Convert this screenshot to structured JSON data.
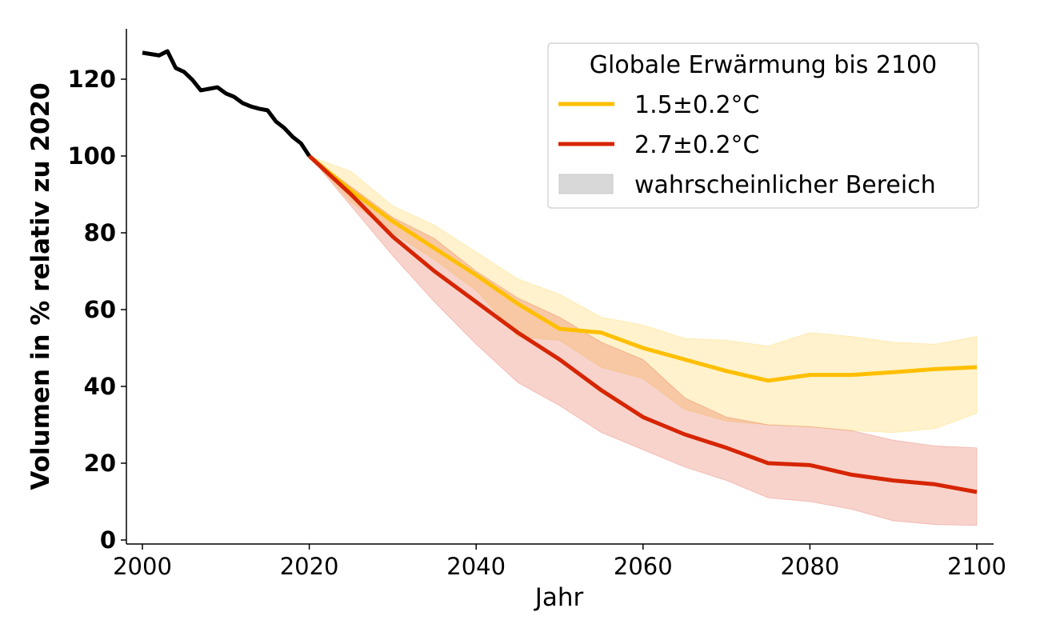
{
  "chart_data": {
    "type": "line",
    "title": "",
    "xlabel": "Jahr",
    "ylabel": "Volumen in % relativ zu 2020",
    "xlim": [
      1999,
      2102
    ],
    "ylim": [
      -1,
      133
    ],
    "xticks": [
      2000,
      2020,
      2040,
      2060,
      2080,
      2100
    ],
    "yticks": [
      0,
      20,
      40,
      60,
      80,
      100,
      120
    ],
    "grid": false,
    "legend": {
      "title": "Globale Erwärmung bis 2100",
      "placement": "top-right",
      "entries": [
        "1.5±0.2°C",
        "2.7±0.2°C",
        "wahrscheinlicher Bereich"
      ]
    },
    "historical": {
      "color": "#000000",
      "x": [
        2000,
        2002,
        2003,
        2004,
        2005,
        2006,
        2007,
        2008,
        2009,
        2010,
        2011,
        2012,
        2013,
        2014,
        2015,
        2016,
        2017,
        2018,
        2019,
        2020
      ],
      "y": [
        126.9,
        126.2,
        127.3,
        122.9,
        121.9,
        119.8,
        117.1,
        117.5,
        117.9,
        116.3,
        115.4,
        113.8,
        112.9,
        112.3,
        111.9,
        109,
        107.3,
        105,
        103.3,
        100
      ]
    },
    "series": [
      {
        "name": "1.5±0.2°C",
        "color": "#FFBF00",
        "x": [
          2020,
          2025,
          2030,
          2035,
          2040,
          2045,
          2050,
          2055,
          2060,
          2065,
          2070,
          2075,
          2080,
          2085,
          2090,
          2095,
          2100
        ],
        "y": [
          100,
          91,
          83,
          76,
          69,
          61.5,
          55,
          54,
          50,
          47,
          44,
          41.5,
          43,
          43,
          43.7,
          44.5,
          45
        ],
        "upper": [
          100,
          96,
          87,
          82,
          75,
          68,
          64,
          58,
          56,
          52.5,
          52,
          50.5,
          54,
          53,
          51.5,
          51,
          53
        ],
        "lower": [
          100,
          88,
          80,
          73,
          65,
          53,
          52,
          45,
          42,
          34,
          31,
          30,
          29.5,
          28.5,
          28,
          29,
          33
        ]
      },
      {
        "name": "2.7±0.2°C",
        "color": "#D62500",
        "x": [
          2020,
          2025,
          2030,
          2035,
          2040,
          2045,
          2050,
          2055,
          2060,
          2065,
          2070,
          2075,
          2080,
          2085,
          2090,
          2095,
          2100
        ],
        "y": [
          100,
          90,
          79,
          70,
          62,
          54,
          47,
          39,
          32,
          27.5,
          24,
          20,
          19.5,
          17,
          15.5,
          14.5,
          12.5
        ],
        "upper": [
          100,
          92,
          84,
          78.5,
          70,
          63,
          58,
          51.5,
          47,
          37,
          32,
          30,
          29.5,
          28.5,
          26,
          24.5,
          24
        ],
        "lower": [
          100,
          87,
          74,
          62,
          51,
          41,
          35,
          28,
          23.5,
          19,
          15.5,
          11,
          10,
          8,
          5,
          4,
          3.8
        ]
      }
    ]
  }
}
